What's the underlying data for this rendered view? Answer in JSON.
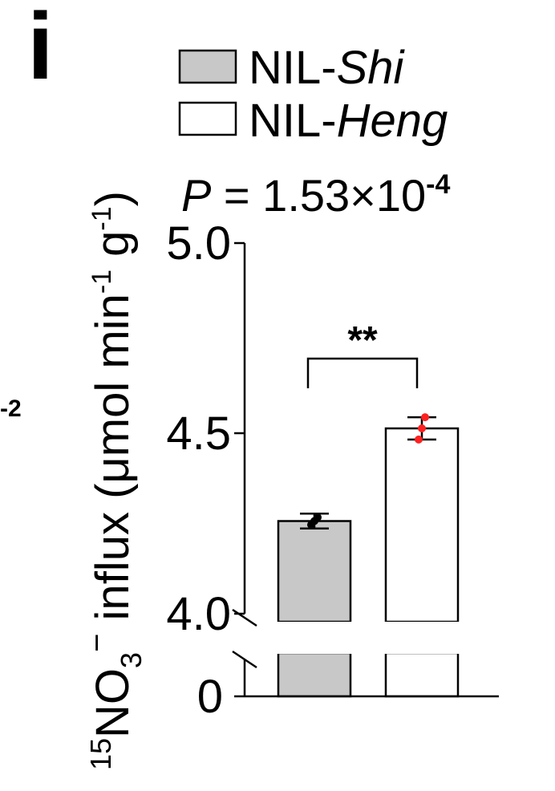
{
  "panel_label": "i",
  "clipped_left_label": "-2",
  "chart_data": {
    "type": "bar",
    "categories": [
      "NIL-Shi",
      "NIL-Heng"
    ],
    "series": [
      {
        "name": "NIL-Shi",
        "name_prefix": "NIL-",
        "name_italic": "Shi",
        "value": 4.25,
        "error": 0.02,
        "points": [
          4.24,
          4.25,
          4.26
        ],
        "fill": "#c8c8c8",
        "point_color": "#000000"
      },
      {
        "name": "NIL-Heng",
        "name_prefix": "NIL-",
        "name_italic": "Heng",
        "value": 4.5,
        "error": 0.03,
        "points": [
          4.47,
          4.5,
          4.53
        ],
        "fill": "#ffffff",
        "point_color": "#ff2020"
      }
    ],
    "ylabel": {
      "sup_prefix": "15",
      "main": "NO",
      "sub": "3",
      "sup_charge": "−",
      "rest": " influx (μmol min",
      "exp1": "-1",
      "mid": " g",
      "exp2": "-1",
      "end": ")"
    },
    "yticks": [
      "5.0",
      "4.5",
      "4.0",
      "0"
    ],
    "ylim": [
      4.0,
      5.0
    ],
    "axis_break": true,
    "grid": false,
    "legend_position": "top",
    "annotation": {
      "significance": "**",
      "p_label": "P",
      "p_text": " = 1.53×10",
      "p_exp": "-4"
    }
  }
}
